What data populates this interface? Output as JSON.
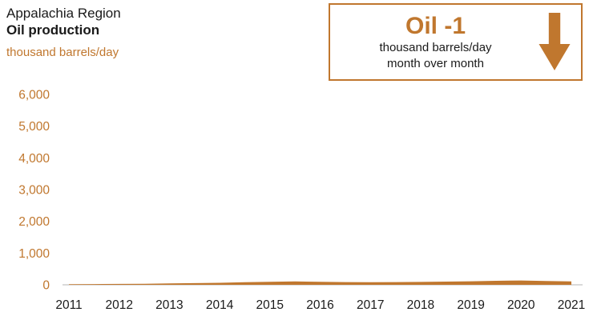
{
  "colors": {
    "accent": "#c0772e",
    "text": "#1a1a1a",
    "axis": "#b5b5b5"
  },
  "header": {
    "region": "Appalachia Region",
    "product": "Oil production",
    "units": "thousand barrels/day"
  },
  "callout": {
    "title": "Oil -1",
    "line1": "thousand barrels/day",
    "line2": "month over month",
    "direction": "down"
  },
  "chart_data": {
    "type": "area",
    "title": "Appalachia Region Oil production",
    "xlabel": "",
    "ylabel": "thousand barrels/day",
    "ylim": [
      0,
      6000
    ],
    "yticks": [
      0,
      1000,
      2000,
      3000,
      4000,
      5000,
      6000
    ],
    "ytick_labels": [
      "0",
      "1,000",
      "2,000",
      "3,000",
      "4,000",
      "5,000",
      "6,000"
    ],
    "xlim": [
      2011,
      2021
    ],
    "xticks": [
      2011,
      2012,
      2013,
      2014,
      2015,
      2016,
      2017,
      2018,
      2019,
      2020,
      2021
    ],
    "x": [
      2011,
      2011.5,
      2012,
      2012.5,
      2013,
      2013.5,
      2014,
      2014.5,
      2015,
      2015.5,
      2016,
      2016.5,
      2017,
      2017.5,
      2018,
      2018.5,
      2019,
      2019.5,
      2020,
      2020.5,
      2021
    ],
    "values": [
      18,
      22,
      28,
      34,
      42,
      52,
      64,
      80,
      96,
      106,
      97,
      86,
      80,
      85,
      92,
      100,
      110,
      126,
      136,
      120,
      106
    ],
    "series_name": "Oil production",
    "grid": false,
    "legend": false
  }
}
